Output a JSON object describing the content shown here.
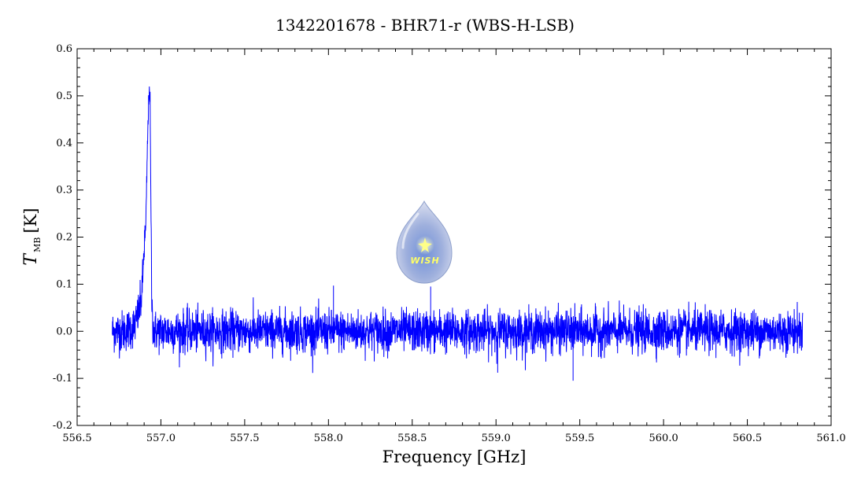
{
  "chart_data": {
    "type": "line",
    "title": "1342201678 - BHR71-r (WBS-H-LSB)",
    "xlabel": "Frequency [GHz]",
    "ylabel_main": "T",
    "ylabel_sub": "MB",
    "ylabel_unit": "[K]",
    "xlim": [
      556.5,
      561.0
    ],
    "ylim": [
      -0.2,
      0.6
    ],
    "x_ticks": [
      "556.5",
      "557.0",
      "557.5",
      "558.0",
      "558.5",
      "559.0",
      "559.5",
      "560.0",
      "560.5",
      "561.0"
    ],
    "y_ticks": [
      "-0.2",
      "-0.1",
      "0.0",
      "0.1",
      "0.2",
      "0.3",
      "0.4",
      "0.5",
      "0.6"
    ],
    "grid": false,
    "series": [
      {
        "color": "#0000ff",
        "x_range": [
          556.71,
          560.83
        ],
        "baseline": 0.0,
        "noise_rms": 0.022,
        "line_peak": {
          "x": [
            556.7,
            556.78,
            556.84,
            556.86,
            556.88,
            556.89,
            556.9,
            556.91,
            556.92,
            556.93,
            556.935,
            556.94,
            556.945,
            556.95,
            556.96,
            556.98,
            557.0
          ],
          "y": [
            0.0,
            0.0,
            0.01,
            0.03,
            0.06,
            0.1,
            0.18,
            0.22,
            0.4,
            0.52,
            0.5,
            0.28,
            0.08,
            0.02,
            0.0,
            0.0,
            0.0
          ]
        },
        "spikes": [
          {
            "x": 558.03,
            "y": 0.097
          },
          {
            "x": 558.61,
            "y": 0.095
          },
          {
            "x": 559.01,
            "y": -0.088
          },
          {
            "x": 559.46,
            "y": -0.105
          }
        ]
      }
    ]
  },
  "logo": {
    "text": "WISH",
    "icon": "water-drop-star-icon"
  }
}
